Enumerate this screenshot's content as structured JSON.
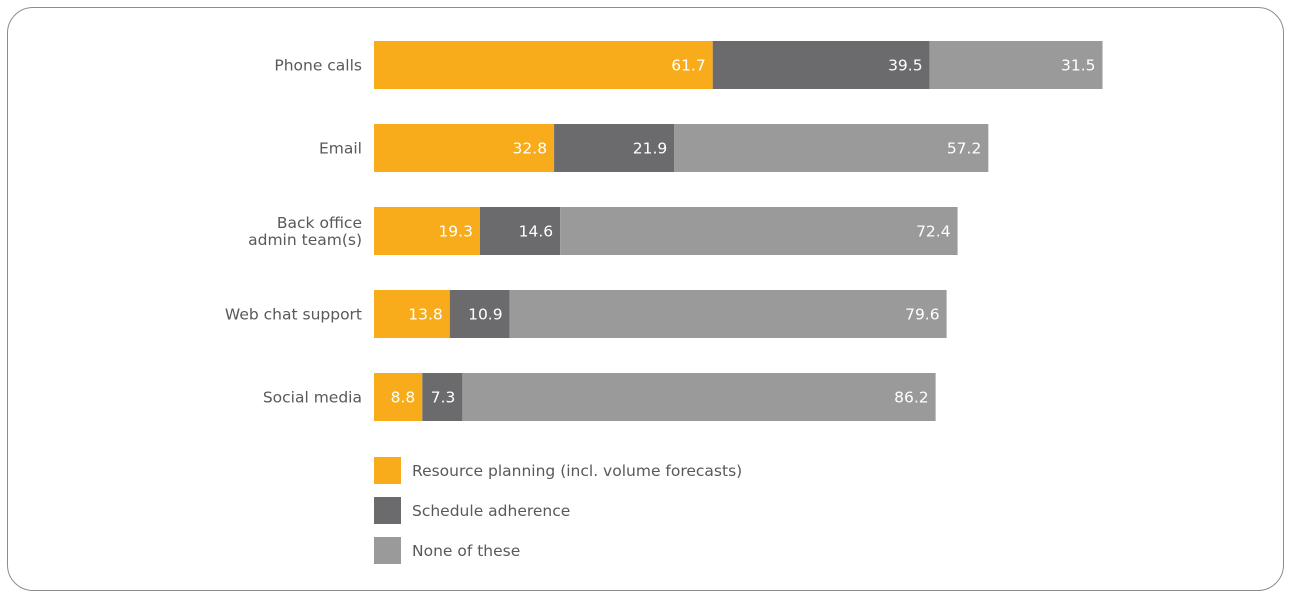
{
  "chart_data": {
    "type": "bar",
    "orientation": "horizontal",
    "stacked": true,
    "categories": [
      [
        "Phone calls"
      ],
      [
        "Email"
      ],
      [
        "Back office",
        "admin team(s)"
      ],
      [
        "Web chat support"
      ],
      [
        "Social media"
      ]
    ],
    "series": [
      {
        "name": "Resource planning (incl. volume forecasts)",
        "color": "#f8ac1b",
        "values": [
          61.7,
          32.8,
          19.3,
          13.8,
          8.8
        ]
      },
      {
        "name": "Schedule adherence",
        "color": "#6b6b6e",
        "values": [
          39.5,
          21.9,
          14.6,
          10.9,
          7.3
        ]
      },
      {
        "name": "None of these",
        "color": "#9a9a9a",
        "values": [
          31.5,
          57.2,
          72.4,
          79.6,
          86.2
        ]
      }
    ],
    "data_labels": true,
    "grid": false,
    "legend_position": "bottom"
  }
}
